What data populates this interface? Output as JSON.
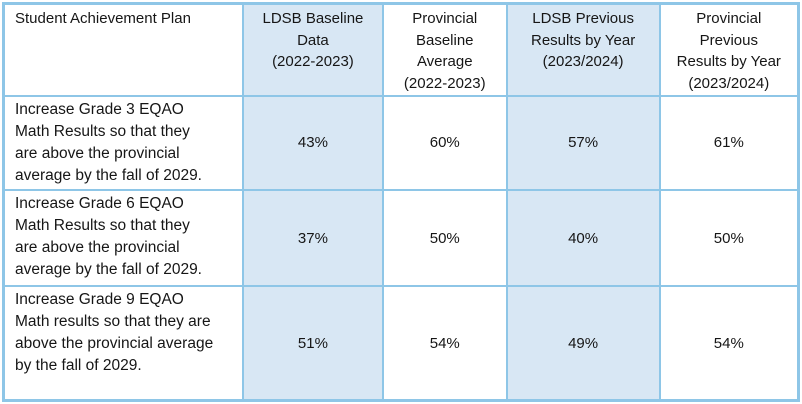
{
  "colors": {
    "cell_fill_blue": "#d8e7f4",
    "grid_border": "#8ec6e7",
    "header_underline": "#3fa8df",
    "text": "#161616",
    "background": "#ffffff"
  },
  "table": {
    "header": {
      "col1": "Student Achievement Plan",
      "col2": "LDSB Baseline\nData\n(2022-2023)",
      "col3": "Provincial\nBaseline\nAverage\n(2022-2023)",
      "col4": "LDSB Previous\nResults by Year\n(2023/2024)",
      "col5": "Provincial\nPrevious\nResults by Year\n(2023/2024)"
    },
    "rows": [
      {
        "goal": "Increase Grade 3 EQAO\nMath Results so that they\nare above the provincial\naverage by the fall of 2029.",
        "ldsb_baseline": "43%",
        "provincial_baseline": "60%",
        "ldsb_previous": "57%",
        "provincial_previous": "61%"
      },
      {
        "goal": "Increase Grade 6 EQAO\nMath Results so that they\nare above the provincial\naverage by the fall of 2029.",
        "ldsb_baseline": "37%",
        "provincial_baseline": "50%",
        "ldsb_previous": "40%",
        "provincial_previous": "50%"
      },
      {
        "goal": "Increase Grade 9 EQAO\nMath results so that they are\nabove the provincial average\nby the fall of 2029.",
        "ldsb_baseline": "51%",
        "provincial_baseline": "54%",
        "ldsb_previous": "49%",
        "provincial_previous": "54%"
      }
    ]
  },
  "chart_data": {
    "type": "table",
    "columns": [
      "Student Achievement Plan",
      "LDSB Baseline Data (2022-2023)",
      "Provincial Baseline Average (2022-2023)",
      "LDSB Previous Results by Year (2023/2024)",
      "Provincial Previous Results by Year (2023/2024)"
    ],
    "rows": [
      [
        "Increase Grade 3 EQAO Math Results so that they are above the provincial average by the fall of 2029.",
        "43%",
        "60%",
        "57%",
        "61%"
      ],
      [
        "Increase Grade 6 EQAO Math Results so that they are above the provincial average by the fall of 2029.",
        "37%",
        "50%",
        "40%",
        "50%"
      ],
      [
        "Increase Grade 9 EQAO Math results so that they are above the provincial average by the fall of 2029.",
        "51%",
        "54%",
        "49%",
        "54%"
      ]
    ]
  }
}
